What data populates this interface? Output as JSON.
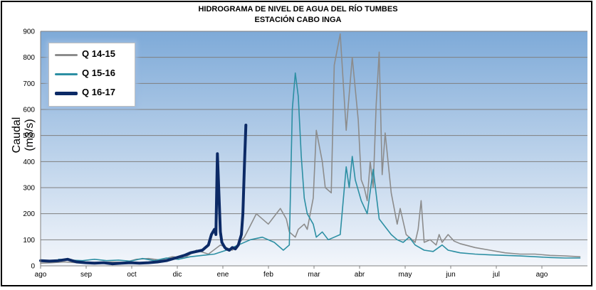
{
  "chart_data": {
    "type": "line",
    "title": "HIDROGRAMA DE NIVEL DE AGUA DEL RÍO TUMBES",
    "subtitle": "ESTACIÓN CABO INGA",
    "ylabel": "Caudal (m3/s)",
    "ylim": [
      0,
      900
    ],
    "yticks": [
      "0",
      "100",
      "200",
      "300",
      "400",
      "500",
      "600",
      "700",
      "800",
      "900"
    ],
    "xticks": [
      "ago",
      "sep",
      "oct",
      "dic",
      "ene",
      "feb",
      "mar",
      "abr",
      "may",
      "jun",
      "jul",
      "ago"
    ],
    "grid": true,
    "legend_position": "top-left",
    "series": [
      {
        "name": "Q 14-15",
        "color": "#8c8c8c",
        "x": [
          0,
          8,
          16,
          24,
          32,
          40,
          48,
          56,
          64,
          72,
          80,
          88,
          96,
          104,
          112,
          120,
          128,
          136,
          144,
          152,
          160,
          164,
          166,
          170,
          172,
          176,
          178,
          182,
          184,
          188,
          190,
          194,
          196,
          200,
          204,
          208,
          212,
          214,
          216,
          218,
          220,
          222,
          224,
          226,
          228,
          230,
          234,
          238,
          240,
          244,
          248,
          250,
          252,
          254,
          256,
          260,
          264,
          266,
          268,
          272,
          276,
          280,
          290,
          300,
          310,
          320,
          330,
          340,
          350,
          360
        ],
        "y": [
          10,
          12,
          15,
          12,
          14,
          13,
          15,
          13,
          25,
          28,
          22,
          35,
          30,
          60,
          45,
          80,
          60,
          110,
          200,
          160,
          220,
          180,
          130,
          110,
          140,
          160,
          140,
          260,
          520,
          400,
          300,
          280,
          770,
          890,
          520,
          800,
          560,
          330,
          300,
          250,
          400,
          300,
          620,
          820,
          350,
          510,
          280,
          160,
          220,
          120,
          100,
          90,
          140,
          250,
          90,
          100,
          80,
          120,
          90,
          120,
          95,
          85,
          70,
          60,
          50,
          45,
          45,
          40,
          38,
          35
        ]
      },
      {
        "name": "Q 15-16",
        "color": "#2c8fa3",
        "x": [
          12,
          20,
          28,
          36,
          44,
          52,
          60,
          68,
          76,
          84,
          92,
          100,
          108,
          116,
          124,
          132,
          140,
          148,
          156,
          162,
          166,
          168,
          170,
          172,
          174,
          176,
          178,
          182,
          184,
          188,
          192,
          196,
          200,
          204,
          206,
          208,
          210,
          212,
          214,
          218,
          222,
          226,
          230,
          234,
          238,
          242,
          246,
          250,
          256,
          262,
          268,
          272,
          280,
          290,
          300,
          310,
          320,
          330,
          340,
          350,
          360
        ],
        "y": [
          25,
          22,
          20,
          25,
          20,
          22,
          18,
          28,
          20,
          30,
          25,
          35,
          40,
          45,
          60,
          80,
          100,
          110,
          90,
          60,
          80,
          600,
          740,
          650,
          420,
          260,
          200,
          160,
          110,
          130,
          100,
          110,
          120,
          380,
          300,
          420,
          330,
          290,
          250,
          200,
          370,
          180,
          150,
          120,
          100,
          90,
          110,
          80,
          60,
          55,
          80,
          60,
          50,
          45,
          42,
          40,
          38,
          35,
          32,
          30,
          30
        ]
      },
      {
        "name": "Q 16-17",
        "color": "#0c2a66",
        "x": [
          0,
          6,
          12,
          18,
          24,
          30,
          36,
          42,
          48,
          54,
          60,
          66,
          72,
          78,
          84,
          90,
          96,
          100,
          104,
          108,
          112,
          114,
          116,
          117,
          118,
          119,
          120,
          121,
          122,
          123,
          124,
          126,
          128,
          130,
          132,
          134,
          135,
          136,
          137
        ],
        "y": [
          20,
          18,
          20,
          25,
          15,
          12,
          10,
          12,
          8,
          10,
          12,
          10,
          12,
          15,
          20,
          30,
          40,
          50,
          55,
          60,
          80,
          120,
          140,
          120,
          430,
          280,
          130,
          90,
          80,
          70,
          65,
          60,
          70,
          65,
          80,
          120,
          200,
          380,
          540
        ]
      }
    ]
  }
}
